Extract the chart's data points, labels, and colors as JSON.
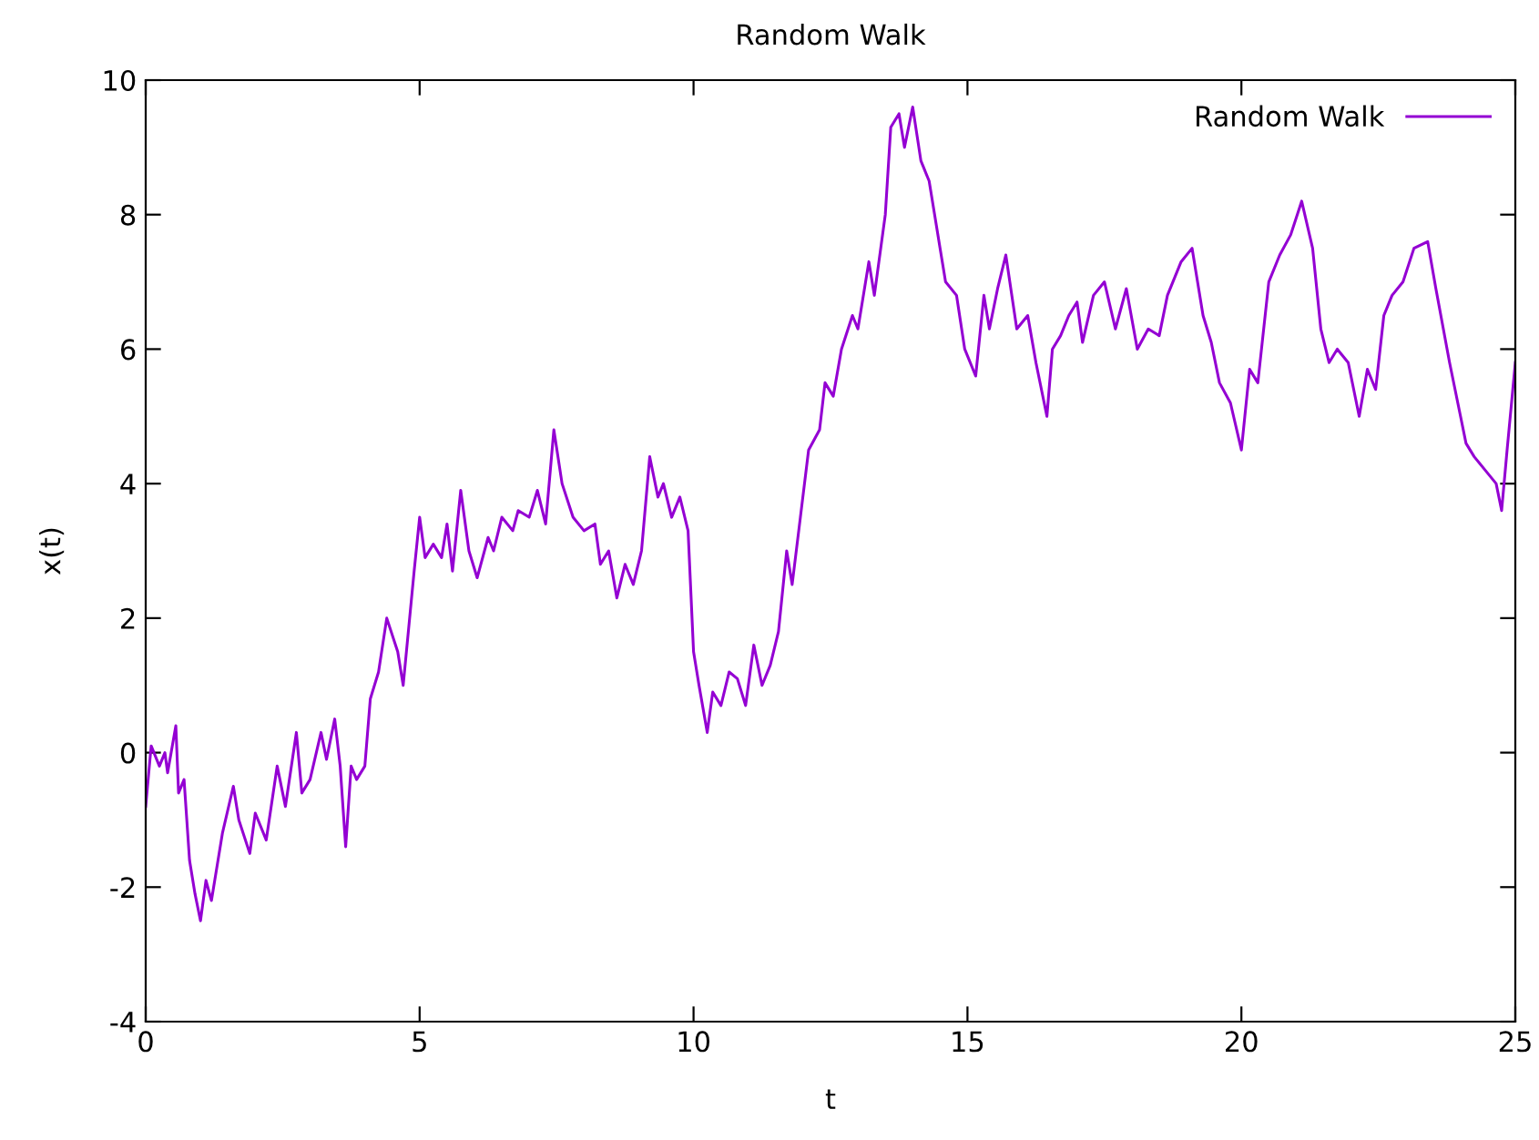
{
  "chart_data": {
    "type": "line",
    "title": "Random Walk",
    "xlabel": "t",
    "ylabel": "x(t)",
    "xlim": [
      0,
      25
    ],
    "ylim": [
      -4,
      10
    ],
    "xticks": [
      0,
      5,
      10,
      15,
      20,
      25
    ],
    "yticks": [
      -4,
      -2,
      0,
      2,
      4,
      6,
      8,
      10
    ],
    "grid": false,
    "legend": "top right",
    "line_style": "solid",
    "marker": "none",
    "series": [
      {
        "name": "Random Walk",
        "color": "#9400d3",
        "x": [
          0,
          0.1,
          0.25,
          0.35,
          0.4,
          0.55,
          0.6,
          0.7,
          0.8,
          0.9,
          1.0,
          1.1,
          1.2,
          1.4,
          1.6,
          1.7,
          1.9,
          2.0,
          2.2,
          2.4,
          2.55,
          2.75,
          2.85,
          3.0,
          3.2,
          3.3,
          3.45,
          3.55,
          3.65,
          3.75,
          3.85,
          4.0,
          4.1,
          4.25,
          4.4,
          4.6,
          4.7,
          4.9,
          5.0,
          5.1,
          5.25,
          5.4,
          5.5,
          5.6,
          5.75,
          5.9,
          6.05,
          6.25,
          6.35,
          6.5,
          6.7,
          6.8,
          7.0,
          7.15,
          7.3,
          7.45,
          7.6,
          7.8,
          8.0,
          8.2,
          8.3,
          8.45,
          8.6,
          8.75,
          8.9,
          9.05,
          9.2,
          9.35,
          9.45,
          9.6,
          9.75,
          9.9,
          10.0,
          10.1,
          10.25,
          10.35,
          10.5,
          10.65,
          10.8,
          10.95,
          11.1,
          11.25,
          11.4,
          11.55,
          11.7,
          11.8,
          11.95,
          12.1,
          12.3,
          12.4,
          12.55,
          12.7,
          12.9,
          13.0,
          13.2,
          13.3,
          13.5,
          13.6,
          13.75,
          13.85,
          14.0,
          14.15,
          14.3,
          14.5,
          14.6,
          14.8,
          14.95,
          15.15,
          15.3,
          15.4,
          15.55,
          15.7,
          15.9,
          16.1,
          16.25,
          16.45,
          16.55,
          16.7,
          16.85,
          17.0,
          17.1,
          17.3,
          17.5,
          17.7,
          17.9,
          18.1,
          18.3,
          18.5,
          18.65,
          18.9,
          19.1,
          19.3,
          19.45,
          19.6,
          19.8,
          20.0,
          20.15,
          20.3,
          20.5,
          20.7,
          20.9,
          21.1,
          21.3,
          21.45,
          21.6,
          21.75,
          21.95,
          22.15,
          22.3,
          22.45,
          22.6,
          22.75,
          22.95,
          23.15,
          23.4,
          23.55,
          23.8,
          24.0,
          24.1,
          24.25,
          24.45,
          24.65,
          24.75,
          24.85,
          25.0
        ],
        "values": [
          -0.8,
          0.1,
          -0.2,
          0.0,
          -0.3,
          0.4,
          -0.6,
          -0.4,
          -1.6,
          -2.1,
          -2.5,
          -1.9,
          -2.2,
          -1.2,
          -0.5,
          -1.0,
          -1.5,
          -0.9,
          -1.3,
          -0.2,
          -0.8,
          0.3,
          -0.6,
          -0.4,
          0.3,
          -0.1,
          0.5,
          -0.2,
          -1.4,
          -0.2,
          -0.4,
          -0.2,
          0.8,
          1.2,
          2.0,
          1.5,
          1.0,
          2.7,
          3.5,
          2.9,
          3.1,
          2.9,
          3.4,
          2.7,
          3.9,
          3.0,
          2.6,
          3.2,
          3.0,
          3.5,
          3.3,
          3.6,
          3.5,
          3.9,
          3.4,
          4.8,
          4.0,
          3.5,
          3.3,
          3.4,
          2.8,
          3.0,
          2.3,
          2.8,
          2.5,
          3.0,
          4.4,
          3.8,
          4.0,
          3.5,
          3.8,
          3.3,
          1.5,
          1.0,
          0.3,
          0.9,
          0.7,
          1.2,
          1.1,
          0.7,
          1.6,
          1.0,
          1.3,
          1.8,
          3.0,
          2.5,
          3.5,
          4.5,
          4.8,
          5.5,
          5.3,
          6.0,
          6.5,
          6.3,
          7.3,
          6.8,
          8.0,
          9.3,
          9.5,
          9.0,
          9.6,
          8.8,
          8.5,
          7.5,
          7.0,
          6.8,
          6.0,
          5.6,
          6.8,
          6.3,
          6.9,
          7.4,
          6.3,
          6.5,
          5.8,
          5.0,
          6.0,
          6.2,
          6.5,
          6.7,
          6.1,
          6.8,
          7.0,
          6.3,
          6.9,
          6.0,
          6.3,
          6.2,
          6.8,
          7.3,
          7.5,
          6.5,
          6.1,
          5.5,
          5.2,
          4.5,
          5.7,
          5.5,
          7.0,
          7.4,
          7.7,
          8.2,
          7.5,
          6.3,
          5.8,
          6.0,
          5.8,
          5.0,
          5.7,
          5.4,
          6.5,
          6.8,
          7.0,
          7.5,
          7.6,
          6.9,
          5.8,
          5.0,
          4.6,
          4.4,
          4.2,
          4.0,
          3.6,
          4.5,
          5.8
        ]
      }
    ]
  }
}
